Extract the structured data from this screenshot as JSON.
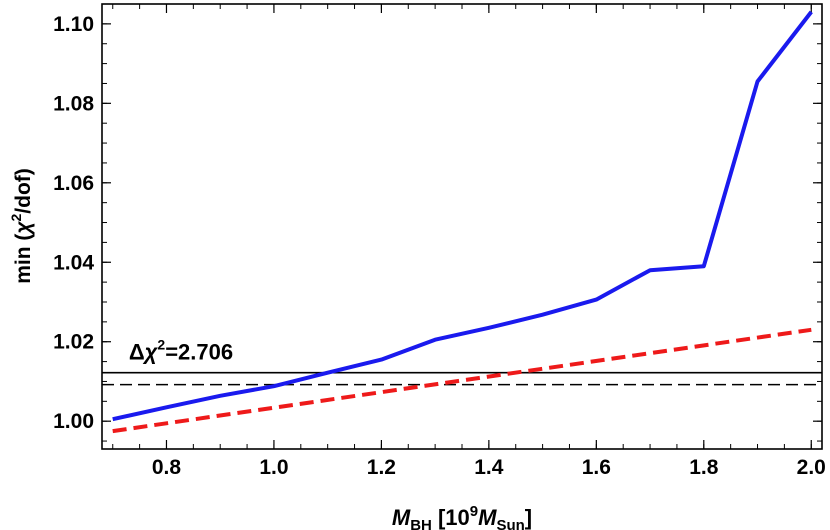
{
  "chart_data": {
    "type": "line",
    "xlabel": {
      "main": "M",
      "main_sub": "BH",
      "open": " [10",
      "exp": "9",
      "unit": "M",
      "unit_sub": "Sun",
      "close": "]"
    },
    "ylabel": {
      "prefix": "min (",
      "chi": "χ",
      "exp": "2",
      "suffix": "/dof)"
    },
    "xlim": [
      0.68,
      2.02
    ],
    "ylim": [
      0.993,
      1.105
    ],
    "x_ticks": [
      "0.8",
      "1.0",
      "1.2",
      "1.4",
      "1.6",
      "1.8",
      "2.0"
    ],
    "y_ticks": [
      "1.00",
      "1.02",
      "1.04",
      "1.06",
      "1.08",
      "1.10"
    ],
    "series": [
      {
        "color": "#1a1aee",
        "dash": "solid",
        "x": [
          0.7,
          0.8,
          0.9,
          1.0,
          1.1,
          1.2,
          1.3,
          1.4,
          1.5,
          1.6,
          1.7,
          1.8,
          1.9,
          2.0
        ],
        "y": [
          1.0005,
          1.0035,
          1.0064,
          1.0088,
          1.0122,
          1.0155,
          1.0205,
          1.0235,
          1.0268,
          1.0306,
          1.038,
          1.039,
          1.0855,
          1.103
        ]
      },
      {
        "color": "#ee1a1a",
        "dash": "dashed",
        "x": [
          0.7,
          2.0
        ],
        "y": [
          0.9975,
          1.023
        ]
      }
    ],
    "hlines": [
      {
        "y": 1.0122,
        "style": "solid",
        "color": "#000000"
      },
      {
        "y": 1.0092,
        "style": "dashed",
        "color": "#000000"
      }
    ],
    "annotation": {
      "delta": "Δ",
      "chi": "χ",
      "exp": "2",
      "value": "=2.706",
      "x": 0.73,
      "y": 1.0155
    }
  }
}
